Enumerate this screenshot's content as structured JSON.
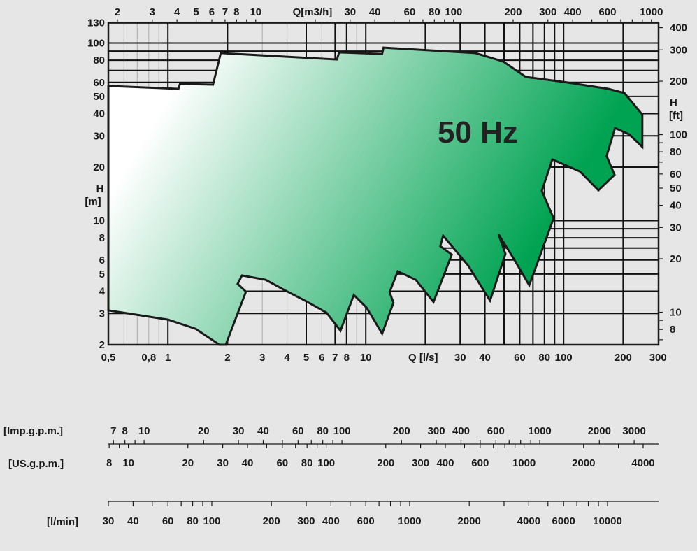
{
  "chart_data": {
    "type": "area",
    "annotation": "50 Hz",
    "xscale": "log",
    "yscale": "log",
    "xlim": [
      0.5,
      300
    ],
    "ylim": [
      2,
      130
    ],
    "grid": true,
    "colors": {
      "fill_start": "#ffffff",
      "fill_end": "#00a352",
      "outline": "#1a1a1a",
      "grid": "#111111",
      "grid_light": "#b5b5b5",
      "background": "#e6e6e6"
    },
    "x_axis_bottom": {
      "title": "Q [l/s]",
      "ticks": [
        {
          "label": "0,5",
          "value": 0.5
        },
        {
          "label": "0,8",
          "value": 0.8
        },
        {
          "label": "1",
          "value": 1
        },
        {
          "label": "2",
          "value": 2
        },
        {
          "label": "3",
          "value": 3
        },
        {
          "label": "4",
          "value": 4
        },
        {
          "label": "5",
          "value": 5
        },
        {
          "label": "6",
          "value": 6
        },
        {
          "label": "7",
          "value": 7
        },
        {
          "label": "8",
          "value": 8
        },
        {
          "label": "10",
          "value": 10
        },
        {
          "label": "30",
          "value": 30
        },
        {
          "label": "40",
          "value": 40
        },
        {
          "label": "60",
          "value": 60
        },
        {
          "label": "80",
          "value": 80
        },
        {
          "label": "100",
          "value": 100
        },
        {
          "label": "200",
          "value": 200
        },
        {
          "label": "300",
          "value": 300
        }
      ]
    },
    "x_axis_top": {
      "title": "Q[m3/h]",
      "ticks": [
        {
          "label": "2",
          "value": 2
        },
        {
          "label": "3",
          "value": 3
        },
        {
          "label": "4",
          "value": 4
        },
        {
          "label": "5",
          "value": 5
        },
        {
          "label": "6",
          "value": 6
        },
        {
          "label": "7",
          "value": 7
        },
        {
          "label": "8",
          "value": 8
        },
        {
          "label": "10",
          "value": 10
        },
        {
          "label": "30",
          "value": 30
        },
        {
          "label": "40",
          "value": 40
        },
        {
          "label": "60",
          "value": 60
        },
        {
          "label": "80",
          "value": 80
        },
        {
          "label": "100",
          "value": 100
        },
        {
          "label": "200",
          "value": 200
        },
        {
          "label": "300",
          "value": 300
        },
        {
          "label": "400",
          "value": 400
        },
        {
          "label": "600",
          "value": 600
        },
        {
          "label": "1000",
          "value": 1000
        }
      ]
    },
    "y_axis_left": {
      "title_line1": "H",
      "title_line2": "[m]",
      "ticks": [
        {
          "label": "130",
          "value": 130
        },
        {
          "label": "100",
          "value": 100
        },
        {
          "label": "80",
          "value": 80
        },
        {
          "label": "60",
          "value": 60
        },
        {
          "label": "50",
          "value": 50
        },
        {
          "label": "40",
          "value": 40
        },
        {
          "label": "30",
          "value": 30
        },
        {
          "label": "20",
          "value": 20
        },
        {
          "label": "10",
          "value": 10
        },
        {
          "label": "8",
          "value": 8
        },
        {
          "label": "6",
          "value": 6
        },
        {
          "label": "5",
          "value": 5
        },
        {
          "label": "4",
          "value": 4
        },
        {
          "label": "3",
          "value": 3
        },
        {
          "label": "2",
          "value": 2
        }
      ]
    },
    "y_axis_right": {
      "title_line1": "H",
      "title_line2": "[ft]",
      "ticks": [
        {
          "label": "400",
          "value": 400
        },
        {
          "label": "300",
          "value": 300
        },
        {
          "label": "200",
          "value": 200
        },
        {
          "label": "100",
          "value": 100
        },
        {
          "label": "80",
          "value": 80
        },
        {
          "label": "60",
          "value": 60
        },
        {
          "label": "50",
          "value": 50
        },
        {
          "label": "40",
          "value": 40
        },
        {
          "label": "30",
          "value": 30
        },
        {
          "label": "20",
          "value": 20
        },
        {
          "label": "10",
          "value": 10
        },
        {
          "label": "8",
          "value": 8
        }
      ]
    },
    "scales_bottom": [
      {
        "title": "[Imp.g.p.m.]",
        "unit_ls": 0.07577,
        "labels": [
          "7",
          "8",
          "10",
          "20",
          "30",
          "40",
          "60",
          "80",
          "100",
          "200",
          "300",
          "400",
          "600",
          "1000",
          "2000",
          "3000"
        ]
      },
      {
        "title": "[US.g.p.m.]",
        "unit_ls": 0.06309,
        "labels": [
          "8",
          "10",
          "20",
          "30",
          "40",
          "60",
          "80",
          "100",
          "200",
          "300",
          "400",
          "600",
          "1000",
          "2000",
          "4000"
        ]
      },
      {
        "title": "[l/min]",
        "unit_ls": 0.016667,
        "labels": [
          "30",
          "40",
          "60",
          "80",
          "100",
          "200",
          "300",
          "400",
          "600",
          "1000",
          "2000",
          "4000",
          "6000",
          "10000"
        ]
      }
    ],
    "grid_lines": {
      "q_major": [
        1,
        2,
        5,
        7,
        8,
        10,
        20,
        30,
        40,
        50,
        60,
        70,
        80,
        90,
        100,
        200
      ],
      "q_minor": [
        0.6,
        0.7,
        0.8,
        0.9,
        3,
        4,
        6,
        9
      ],
      "h_major": [
        3,
        4,
        5,
        6,
        7,
        8,
        9,
        10,
        20,
        30,
        40,
        50,
        60,
        70,
        80,
        90,
        100
      ],
      "h_minor": []
    },
    "envelope": [
      [
        0.5,
        57.3
      ],
      [
        1.13,
        55.2
      ],
      [
        1.15,
        58.9
      ],
      [
        1.69,
        58.3
      ],
      [
        1.85,
        87.7
      ],
      [
        7.15,
        80.7
      ],
      [
        7.33,
        88.5
      ],
      [
        12.1,
        86.8
      ],
      [
        12.3,
        94.2
      ],
      [
        18.7,
        91.6
      ],
      [
        35.8,
        87.7
      ],
      [
        49.6,
        78.6
      ],
      [
        64.4,
        64.4
      ],
      [
        100,
        60.4
      ],
      [
        168,
        55.2
      ],
      [
        203,
        52.3
      ],
      [
        250,
        39.5
      ],
      [
        250,
        26.0
      ],
      [
        215,
        30.5
      ],
      [
        182,
        33.2
      ],
      [
        165,
        23.1
      ],
      [
        181,
        18.1
      ],
      [
        150,
        14.8
      ],
      [
        121,
        18.9
      ],
      [
        87.7,
        22.1
      ],
      [
        77.6,
        14.7
      ],
      [
        89,
        10.3
      ],
      [
        67,
        4.32
      ],
      [
        56,
        6.1
      ],
      [
        46.9,
        8.38
      ],
      [
        50.8,
        6.5
      ],
      [
        42.5,
        3.54
      ],
      [
        33,
        5.57
      ],
      [
        24.6,
        8.23
      ],
      [
        23.8,
        7.18
      ],
      [
        27.2,
        6.44
      ],
      [
        22,
        3.48
      ],
      [
        17.9,
        4.64
      ],
      [
        14.5,
        5.18
      ],
      [
        13.2,
        3.95
      ],
      [
        13.8,
        3.45
      ],
      [
        12.1,
        2.31
      ],
      [
        10.1,
        3.23
      ],
      [
        8.7,
        3.81
      ],
      [
        7.45,
        2.4
      ],
      [
        6.33,
        3.03
      ],
      [
        5.08,
        3.48
      ],
      [
        4.08,
        3.95
      ],
      [
        3.89,
        4.06
      ],
      [
        3.12,
        4.64
      ],
      [
        2.37,
        4.91
      ],
      [
        2.25,
        4.4
      ],
      [
        2.48,
        3.98
      ],
      [
        1.96,
        2.0
      ],
      [
        1.82,
        2.0
      ],
      [
        1.38,
        2.46
      ],
      [
        1.0,
        2.77
      ],
      [
        0.5,
        3.12
      ]
    ]
  }
}
